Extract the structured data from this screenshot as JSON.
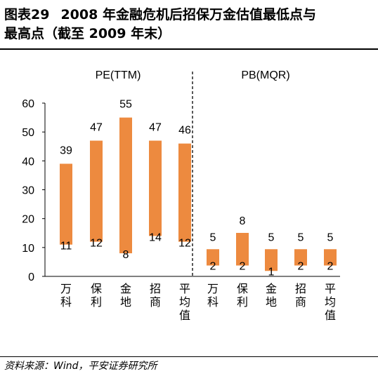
{
  "header": {
    "label": "图表29",
    "title_line1": "2008 年金融危机后招保万金估值最低点与",
    "title_line2": "最高点（截至 2009 年末）"
  },
  "footer": {
    "source": "资料来源：Wind，平安证券研究所"
  },
  "chart_data": [
    {
      "type": "bar",
      "subtype": "floating-range",
      "title": "PE(TTM)",
      "categories": [
        "万科",
        "保利",
        "金地",
        "招商",
        "平均值"
      ],
      "low": [
        11,
        12,
        8,
        14,
        12
      ],
      "high": [
        39,
        47,
        55,
        47,
        46
      ],
      "ylim": [
        0,
        60
      ],
      "yticks": [
        0,
        10,
        20,
        30,
        40,
        50,
        60
      ],
      "color": "#ED8A3F",
      "grid": false
    },
    {
      "type": "bar",
      "subtype": "floating-range",
      "title": "PB(MQR)",
      "categories": [
        "万科",
        "保利",
        "金地",
        "招商",
        "平均值"
      ],
      "low": [
        2,
        2,
        1,
        2,
        2
      ],
      "high": [
        5,
        8,
        5,
        5,
        5
      ],
      "color": "#ED8A3F",
      "grid": false
    }
  ]
}
